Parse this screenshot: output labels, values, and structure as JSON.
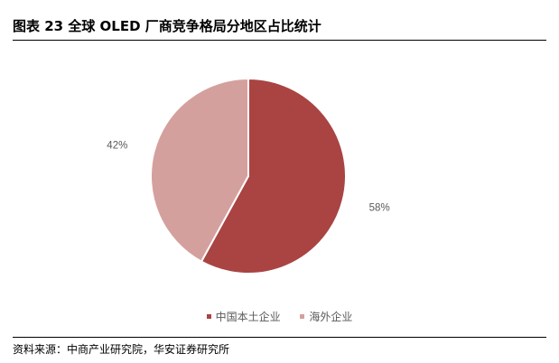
{
  "figure": {
    "title": "图表 23 全球 OLED 厂商竞争格局分地区占比统计",
    "source": "资料来源：中商产业研究院，华安证券研究所"
  },
  "chart_data": {
    "type": "pie",
    "title": "",
    "slices": [
      {
        "label": "中国本土企业",
        "value": 58,
        "value_label": "58%",
        "color": "#a94442"
      },
      {
        "label": "海外企业",
        "value": 42,
        "value_label": "42%",
        "color": "#d4a09d"
      }
    ],
    "start": "12 o'clock",
    "direction": "clockwise",
    "legend_position": "bottom"
  }
}
